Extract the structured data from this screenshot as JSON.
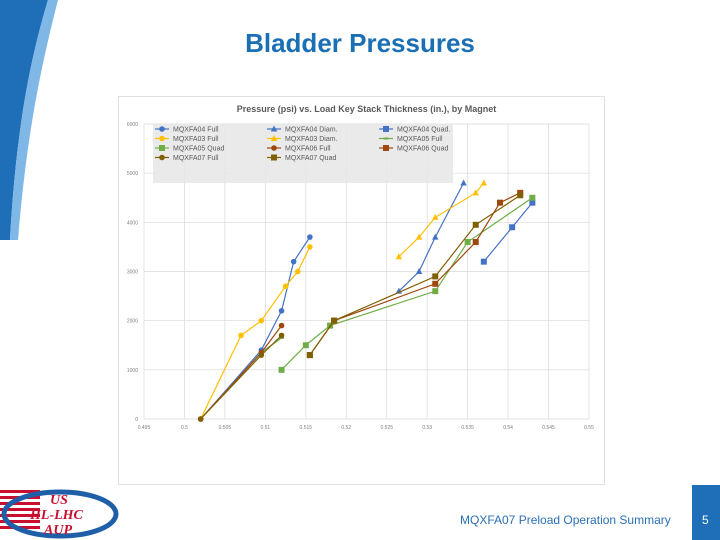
{
  "slide": {
    "title": "Bladder Pressures",
    "footer": "MQXFA07 Preload Operation Summary",
    "page_number": "5",
    "logo_text": [
      "US",
      "HL-LHC",
      "AUP"
    ]
  },
  "chart_data": {
    "type": "line",
    "title": "Pressure (psi) vs. Load Key Stack Thickness (in.), by Magnet",
    "xlabel": "",
    "ylabel": "",
    "xlim": [
      0.495,
      0.55
    ],
    "ylim": [
      0,
      6000
    ],
    "x_ticks": [
      "0.495",
      "0.5",
      "0.505",
      "0.51",
      "0.515",
      "0.52",
      "0.525",
      "0.53",
      "0.535",
      "0.54",
      "0.545",
      "0.55"
    ],
    "y_ticks": [
      "0",
      "1000",
      "2000",
      "3000",
      "4000",
      "5000",
      "6000"
    ],
    "grid": true,
    "legend": "top-left",
    "series": [
      {
        "name": "MQXFA04 Full",
        "color": "#4472c4",
        "marker": "circle",
        "points": [
          [
            0.502,
            0
          ],
          [
            0.5095,
            1400
          ],
          [
            0.512,
            2200
          ],
          [
            0.5135,
            3200
          ],
          [
            0.5155,
            3700
          ]
        ]
      },
      {
        "name": "MQXFA04 Diam.",
        "color": "#4472c4",
        "marker": "triangle",
        "points": [
          [
            0.5265,
            2600
          ],
          [
            0.529,
            3000
          ],
          [
            0.531,
            3700
          ],
          [
            0.5345,
            4800
          ]
        ]
      },
      {
        "name": "MQXFA04 Quad.",
        "color": "#4472c4",
        "marker": "square",
        "points": [
          [
            0.537,
            3200
          ],
          [
            0.5405,
            3900
          ],
          [
            0.543,
            4400
          ]
        ]
      },
      {
        "name": "MQXFA03 Full",
        "color": "#ffc000",
        "marker": "circle",
        "points": [
          [
            0.502,
            0
          ],
          [
            0.507,
            1700
          ],
          [
            0.5095,
            2000
          ],
          [
            0.5125,
            2700
          ],
          [
            0.514,
            3000
          ],
          [
            0.5155,
            3500
          ]
        ]
      },
      {
        "name": "MQXFA03 Diam.",
        "color": "#ffc000",
        "marker": "triangle",
        "points": [
          [
            0.5265,
            3300
          ],
          [
            0.529,
            3700
          ],
          [
            0.531,
            4100
          ],
          [
            0.536,
            4600
          ],
          [
            0.537,
            4800
          ]
        ]
      },
      {
        "name": "MQXFA05 Full",
        "color": "#70ad47",
        "marker": "dash",
        "points": [
          [
            0.502,
            0
          ],
          [
            0.5095,
            1350
          ],
          [
            0.512,
            1650
          ]
        ]
      },
      {
        "name": "MQXFA05 Quad",
        "color": "#70ad47",
        "marker": "square",
        "points": [
          [
            0.512,
            1000
          ],
          [
            0.515,
            1500
          ],
          [
            0.518,
            1900
          ],
          [
            0.531,
            2600
          ],
          [
            0.535,
            3600
          ],
          [
            0.543,
            4500
          ]
        ]
      },
      {
        "name": "MQXFA06 Full",
        "color": "#9e480e",
        "marker": "circle",
        "points": [
          [
            0.502,
            0
          ],
          [
            0.5095,
            1350
          ],
          [
            0.512,
            1900
          ]
        ]
      },
      {
        "name": "MQXFA06 Quad",
        "color": "#9e480e",
        "marker": "square",
        "points": [
          [
            0.5155,
            1300
          ],
          [
            0.5185,
            2000
          ],
          [
            0.531,
            2750
          ],
          [
            0.536,
            3600
          ],
          [
            0.539,
            4400
          ],
          [
            0.5415,
            4600
          ]
        ]
      },
      {
        "name": "MQXFA07 Full",
        "color": "#806000",
        "marker": "circle",
        "points": [
          [
            0.502,
            0
          ],
          [
            0.5095,
            1300
          ],
          [
            0.512,
            1700
          ]
        ]
      },
      {
        "name": "MQXFA07 Quad",
        "color": "#806000",
        "marker": "square",
        "points": [
          [
            0.5155,
            1300
          ],
          [
            0.5185,
            2000
          ],
          [
            0.531,
            2900
          ],
          [
            0.536,
            3950
          ],
          [
            0.5415,
            4550
          ]
        ]
      }
    ]
  }
}
